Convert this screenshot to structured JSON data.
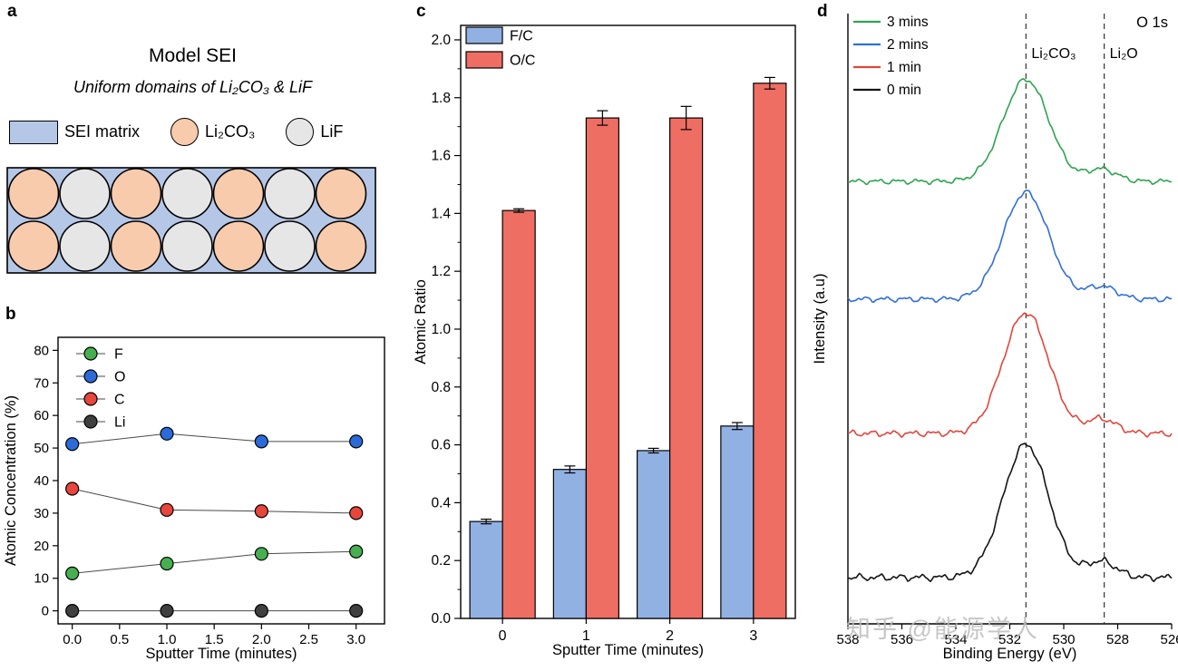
{
  "figure": {
    "panel_labels": {
      "a": "a",
      "b": "b",
      "c": "c",
      "d": "d"
    }
  },
  "panel_a": {
    "title": "Model SEI",
    "subtitle": "Uniform domains of Li₂CO₃ & LiF",
    "legend": [
      {
        "shape": "rect",
        "color": "#b4c7e7",
        "label": "SEI matrix"
      },
      {
        "shape": "circle",
        "color": "#f8cbad",
        "label": "Li₂CO₃"
      },
      {
        "shape": "circle",
        "color": "#e7e6e6",
        "label": "LiF"
      }
    ],
    "matrix_color": "#b4c7e7",
    "circle_colors": {
      "Li2CO3": "#f8cbad",
      "LiF": "#e7e6e6"
    },
    "rows": [
      [
        "Li2CO3",
        "LiF",
        "Li2CO3",
        "LiF",
        "Li2CO3",
        "LiF",
        "Li2CO3"
      ],
      [
        "Li2CO3",
        "LiF",
        "Li2CO3",
        "LiF",
        "Li2CO3",
        "LiF",
        "Li2CO3"
      ]
    ]
  },
  "chart_data": [
    {
      "id": "b",
      "type": "line",
      "x": [
        0,
        1,
        2,
        3
      ],
      "series": [
        {
          "name": "F",
          "color": "#46b050",
          "values": [
            11.5,
            14.5,
            17.5,
            18.2
          ]
        },
        {
          "name": "O",
          "color": "#2b6bd9",
          "values": [
            51.2,
            54.4,
            52.0,
            52.0
          ]
        },
        {
          "name": "C",
          "color": "#e8453c",
          "values": [
            37.5,
            31.0,
            30.6,
            30.0
          ]
        },
        {
          "name": "Li",
          "color": "#3f3f3f",
          "values": [
            0.0,
            0.0,
            0.0,
            0.0
          ]
        }
      ],
      "xlabel": "Sputter Time (minutes)",
      "ylabel": "Atomic Concentration (%)",
      "xlim": [
        -0.15,
        3.3
      ],
      "ylim": [
        -4,
        84
      ],
      "xticks": [
        0.0,
        0.5,
        1.0,
        1.5,
        2.0,
        2.5,
        3.0
      ],
      "yticks": [
        0,
        10,
        20,
        30,
        40,
        50,
        60,
        70,
        80
      ],
      "legend_position": "top-left",
      "grid": false
    },
    {
      "id": "c",
      "type": "bar",
      "categories": [
        "0",
        "1",
        "2",
        "3"
      ],
      "series": [
        {
          "name": "F/C",
          "color": "#92b1e3",
          "values": [
            0.335,
            0.515,
            0.58,
            0.665
          ],
          "errors": [
            0.008,
            0.012,
            0.008,
            0.012
          ]
        },
        {
          "name": "O/C",
          "color": "#ee6e63",
          "values": [
            1.41,
            1.73,
            1.73,
            1.85
          ],
          "errors": [
            0.006,
            0.025,
            0.04,
            0.02
          ]
        }
      ],
      "xlabel": "Sputter Time (minutes)",
      "ylabel": "Atomic Ratio",
      "ylim": [
        0,
        2.05
      ],
      "yticks": [
        0.0,
        0.2,
        0.4,
        0.6,
        0.8,
        1.0,
        1.2,
        1.4,
        1.6,
        1.8,
        2.0
      ],
      "legend_position": "top-left",
      "grid": false
    },
    {
      "id": "d",
      "type": "line",
      "annotation": "O 1s",
      "xlabel": "Binding Energy (eV)",
      "ylabel": "Intensity (a.u)",
      "x_range": [
        538,
        526
      ],
      "xticks": [
        538,
        536,
        534,
        532,
        530,
        528,
        526
      ],
      "reference_lines": [
        {
          "x": 531.4,
          "label": "Li₂CO₃"
        },
        {
          "x": 528.5,
          "label": "Li₂O"
        }
      ],
      "peak_model": {
        "center": 531.4,
        "sigma": 0.85,
        "secondary_center": 528.6,
        "secondary_sigma": 0.55,
        "secondary_ratio": 0.12
      },
      "series": [
        {
          "name": "3 mins",
          "color": "#2da44e",
          "baseline_offset": 0.725,
          "amplitude": 0.167
        },
        {
          "name": "2 mins",
          "color": "#2f6fd6",
          "baseline_offset": 0.532,
          "amplitude": 0.175
        },
        {
          "name": "1 min",
          "color": "#e0463c",
          "baseline_offset": 0.312,
          "amplitude": 0.198
        },
        {
          "name": "0 min",
          "color": "#141414",
          "baseline_offset": 0.076,
          "amplitude": 0.218
        }
      ],
      "legend_position": "top-left",
      "grid": false
    }
  ],
  "watermark": {
    "text": "知乎 @能源学人"
  }
}
